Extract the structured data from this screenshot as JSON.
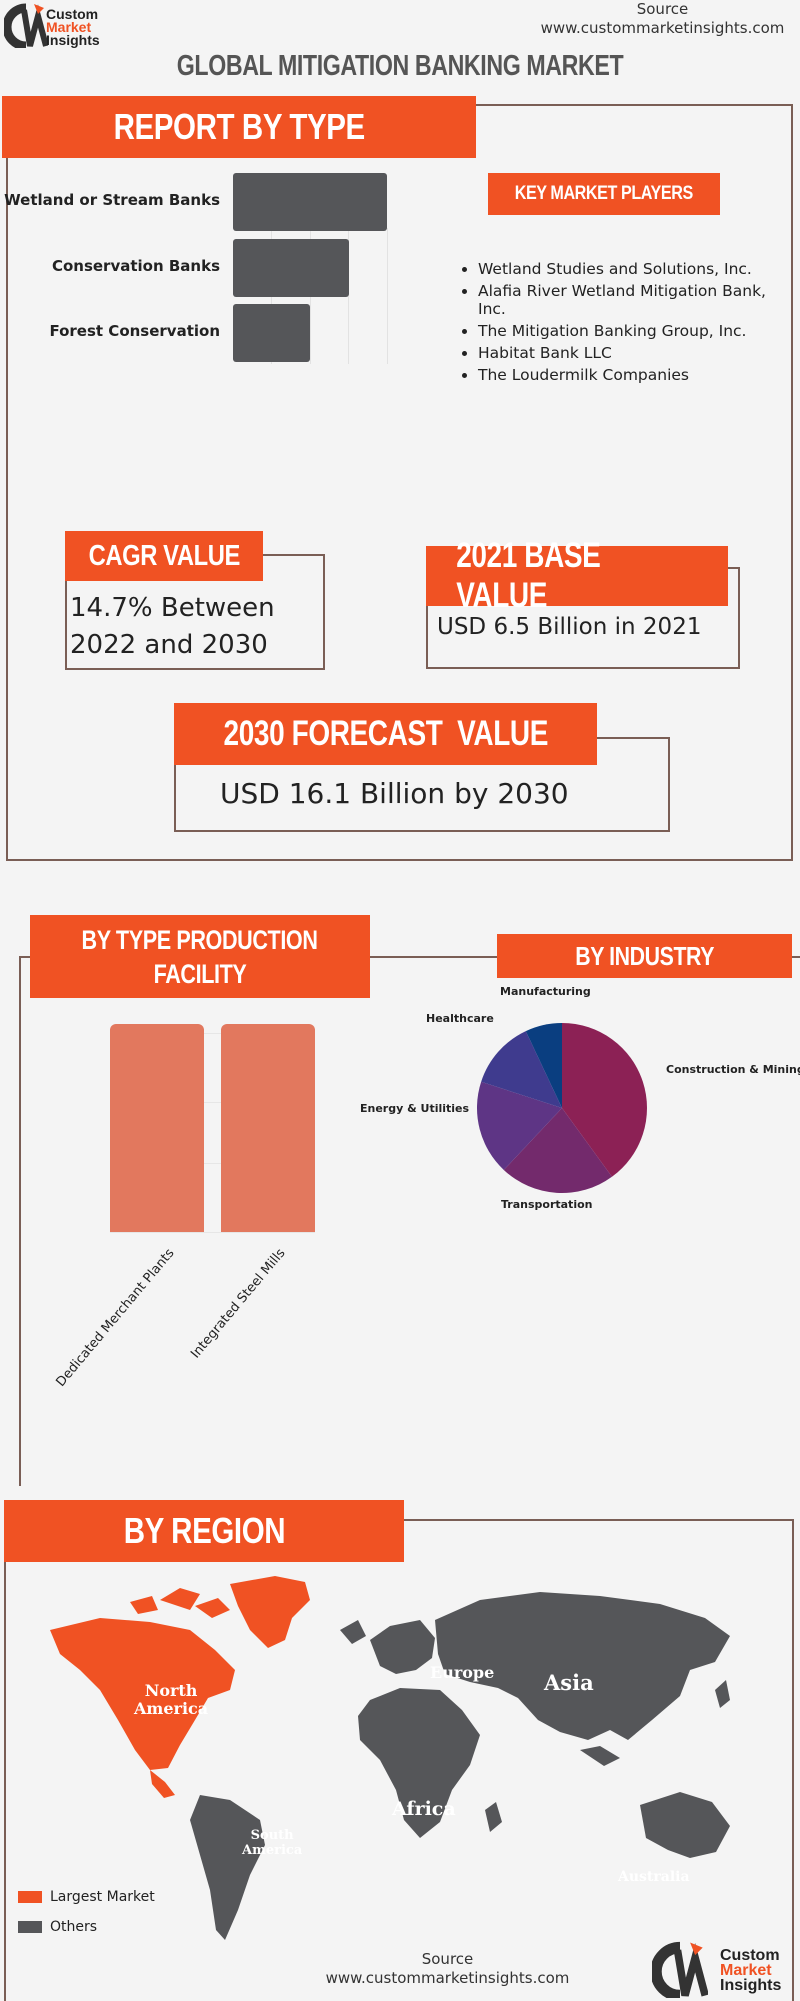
{
  "header": {
    "brand_line1": "Custom",
    "brand_line2": "Market",
    "brand_line3": "Insights",
    "source_label": "Source",
    "source_url": "www.custommarketinsights.com",
    "title": "GLOBAL MITIGATION BANKING MARKET"
  },
  "report_by_type": {
    "heading": "REPORT BY TYPE",
    "chart_data": {
      "type": "bar",
      "orientation": "horizontal",
      "categories": [
        "Wetland or Stream Banks",
        "Conservation Banks",
        "Forest Conservation"
      ],
      "values": [
        4,
        3,
        2
      ],
      "xlim": [
        0,
        4
      ]
    }
  },
  "key_players": {
    "heading": "KEY MARKET PLAYERS",
    "items": [
      "Wetland Studies and Solutions, Inc.",
      "Alafia River Wetland Mitigation Bank, Inc.",
      "The Mitigation Banking Group, Inc.",
      "Habitat Bank LLC",
      "The Loudermilk Companies"
    ]
  },
  "cagr": {
    "heading": "CAGR VALUE",
    "line1": "14.7% Between",
    "line2": "2022 and 2030"
  },
  "base_value": {
    "heading": "2021 BASE VALUE",
    "value": "USD 6.5 Billion in 2021"
  },
  "forecast": {
    "heading": "2030 FORECAST  VALUE",
    "value": "USD 16.1 Billion by 2030"
  },
  "by_type_production": {
    "heading_line1": "BY TYPE PRODUCTION",
    "heading_line2": "FACILITY",
    "chart_data": {
      "type": "bar",
      "categories": [
        "Dedicated Merchant Plants",
        "Integrated Steel Mills"
      ],
      "values": [
        1,
        1
      ],
      "ylim": [
        0,
        1
      ]
    }
  },
  "by_industry": {
    "heading": "BY INDUSTRY",
    "chart_data": {
      "type": "pie",
      "labels": [
        "Construction & Mining",
        "Transportation",
        "Energy & Utilities",
        "Healthcare",
        "Manufacturing"
      ],
      "values": [
        40,
        22,
        18,
        13,
        7
      ],
      "colors": [
        "#8c2155",
        "#732a6c",
        "#5e3585",
        "#3f3b8e",
        "#0a3e80"
      ]
    }
  },
  "by_region": {
    "heading": "BY REGION",
    "regions": {
      "north_america_line1": "North",
      "north_america_line2": "America",
      "europe": "Europe",
      "asia": "Asia",
      "africa": "Africa",
      "south_america_line1": "South",
      "south_america_line2": "America",
      "australia": "Australia"
    },
    "legend": {
      "largest": "Largest Market",
      "others": "Others"
    },
    "colors": {
      "largest": "#f05223",
      "others": "#555659"
    }
  },
  "footer": {
    "source_label": "Source",
    "source_url": "www.custommarketinsights.com",
    "brand_line1": "Custom",
    "brand_line2": "Market",
    "brand_line3": "Insights"
  }
}
